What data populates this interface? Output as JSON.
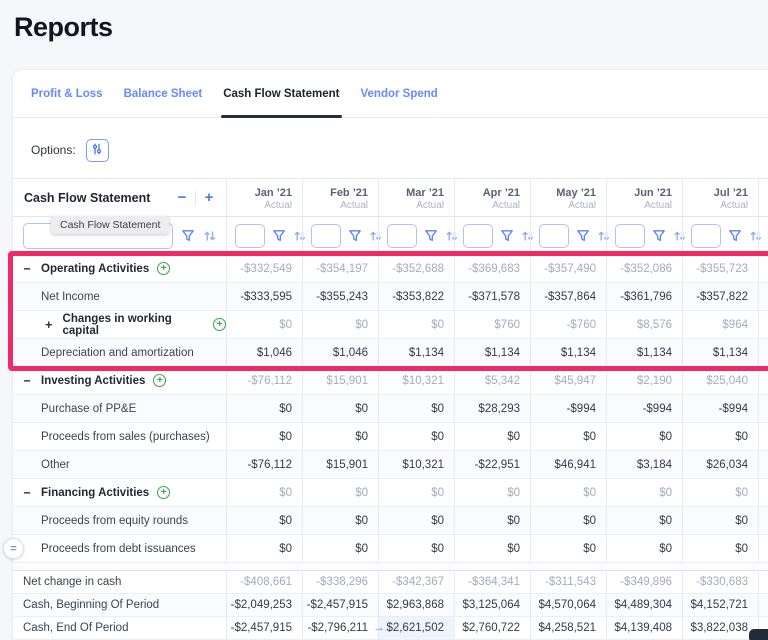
{
  "page": {
    "title": "Reports"
  },
  "tabs": [
    {
      "label": "Profit & Loss",
      "active": false
    },
    {
      "label": "Balance Sheet",
      "active": false
    },
    {
      "label": "Cash Flow Statement",
      "active": true
    },
    {
      "label": "Vendor Spend",
      "active": false
    }
  ],
  "options": {
    "label": "Options:",
    "icon": "sliders-icon"
  },
  "table": {
    "title": "Cash Flow Statement",
    "tooltip": "Cash Flow Statement",
    "controls": {
      "collapse": "−",
      "expand": "+"
    },
    "columns": [
      {
        "month": "Jan ’21",
        "sub": "Actual"
      },
      {
        "month": "Feb ’21",
        "sub": "Actual"
      },
      {
        "month": "Mar ’21",
        "sub": "Actual"
      },
      {
        "month": "Apr ’21",
        "sub": "Actual"
      },
      {
        "month": "May ’21",
        "sub": "Actual"
      },
      {
        "month": "Jun ’21",
        "sub": "Actual"
      },
      {
        "month": "Jul ’21",
        "sub": "Actual"
      }
    ],
    "rows": [
      {
        "label": "Operating Activities",
        "type": "section",
        "toggle": "−",
        "add_icon": true,
        "muted": true,
        "values": [
          "-$332,549",
          "-$354,197",
          "-$352,688",
          "-$369,683",
          "-$357,490",
          "-$352,086",
          "-$355,723"
        ]
      },
      {
        "label": "Net Income",
        "type": "leaf",
        "muted": false,
        "values": [
          "-$333,595",
          "-$355,243",
          "-$353,822",
          "-$371,578",
          "-$357,864",
          "-$361,796",
          "-$357,822"
        ]
      },
      {
        "label": "Changes in working capital",
        "type": "subsection",
        "toggle": "+",
        "add_icon": true,
        "muted": true,
        "values": [
          "$0",
          "$0",
          "$0",
          "$760",
          "-$760",
          "$8,576",
          "$964"
        ]
      },
      {
        "label": "Depreciation and amortization",
        "type": "leaf",
        "muted": false,
        "values": [
          "$1,046",
          "$1,046",
          "$1,134",
          "$1,134",
          "$1,134",
          "$1,134",
          "$1,134"
        ]
      },
      {
        "label": "Investing Activities",
        "type": "section",
        "toggle": "−",
        "add_icon": true,
        "muted": true,
        "values": [
          "-$76,112",
          "$15,901",
          "$10,321",
          "$5,342",
          "$45,947",
          "$2,190",
          "$25,040"
        ]
      },
      {
        "label": "Purchase of PP&E",
        "type": "leaf",
        "muted": false,
        "values": [
          "$0",
          "$0",
          "$0",
          "$28,293",
          "-$994",
          "-$994",
          "-$994"
        ]
      },
      {
        "label": "Proceeds from sales (purchases)",
        "type": "leaf",
        "muted": false,
        "values": [
          "$0",
          "$0",
          "$0",
          "$0",
          "$0",
          "$0",
          "$0"
        ]
      },
      {
        "label": "Other",
        "type": "leaf",
        "muted": false,
        "values": [
          "-$76,112",
          "$15,901",
          "$10,321",
          "-$22,951",
          "$46,941",
          "$3,184",
          "$26,034"
        ]
      },
      {
        "label": "Financing Activities",
        "type": "section",
        "toggle": "−",
        "add_icon": true,
        "muted": true,
        "values": [
          "$0",
          "$0",
          "$0",
          "$0",
          "$0",
          "$0",
          "$0"
        ]
      },
      {
        "label": "Proceeds from equity rounds",
        "type": "leaf",
        "muted": false,
        "values": [
          "$0",
          "$0",
          "$0",
          "$0",
          "$0",
          "$0",
          "$0"
        ]
      },
      {
        "label": "Proceeds from debt issuances",
        "type": "leaf",
        "muted": false,
        "drag_handle": true,
        "values": [
          "$0",
          "$0",
          "$0",
          "$0",
          "$0",
          "$0",
          "$0"
        ]
      }
    ],
    "pinned_rows": [
      {
        "label": "Net change in cash",
        "muted": true,
        "values": [
          "-$408,661",
          "-$338,296",
          "-$342,367",
          "-$364,341",
          "-$311,543",
          "-$349,896",
          "-$330,683"
        ]
      },
      {
        "label": "Cash, Beginning Of Period",
        "muted": false,
        "values": [
          "-$2,049,253",
          "-$2,457,915",
          "$2,963,868",
          "$3,125,064",
          "$4,570,064",
          "$4,489,304",
          "$4,152,721"
        ]
      },
      {
        "label": "Cash, End Of Period",
        "muted": false,
        "arrow_col": 2,
        "values": [
          "-$2,457,915",
          "-$2,796,211",
          "$2,621,502",
          "$2,760,722",
          "$4,258,521",
          "$4,139,408",
          "$3,822,038"
        ]
      }
    ],
    "highlight": {
      "rows": "Operating Activities section (rows 1-4)",
      "color": "#EF2A64"
    },
    "cell_arrow_glyph": "→",
    "drag_handle_glyph": "="
  },
  "icons": {
    "options": "sliders-icon",
    "column_filter": "funnel-icon",
    "column_sort": "sort-arrows-icon"
  },
  "colors": {
    "accent_blue": "#5B82F2",
    "highlight_pink": "#EF2A64",
    "add_green": "#37A44B",
    "muted_value": "#A4ABBA",
    "dark_value": "#333A47"
  }
}
